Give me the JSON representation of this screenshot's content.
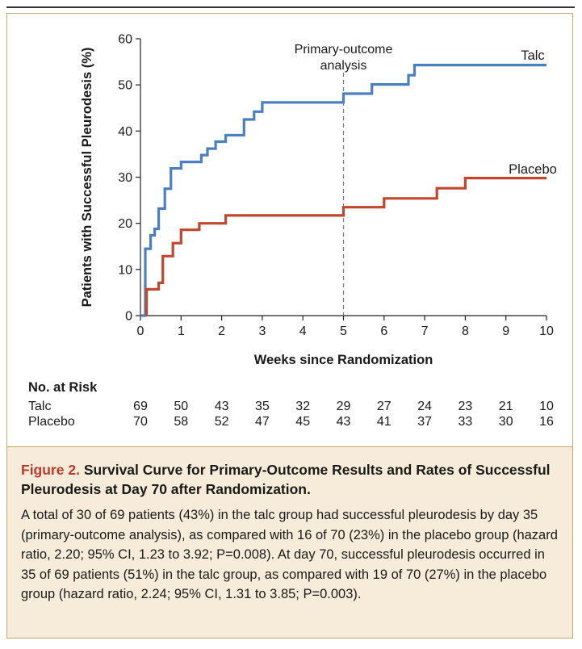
{
  "chart_data": {
    "type": "line",
    "title": "",
    "xlabel": "Weeks since Randomization",
    "ylabel": "Patients with Successful Pleurodesis (%)",
    "xlim": [
      0,
      10
    ],
    "ylim": [
      0,
      60
    ],
    "x_ticks": [
      "0",
      "1",
      "2",
      "3",
      "4",
      "5",
      "6",
      "7",
      "8",
      "9",
      "10"
    ],
    "y_ticks": [
      "0",
      "10",
      "20",
      "30",
      "40",
      "50",
      "60"
    ],
    "step": true,
    "series": [
      {
        "name": "Talc",
        "color": "#4a7fc1",
        "x": [
          0,
          0.12,
          0.12,
          0.25,
          0.25,
          0.35,
          0.35,
          0.45,
          0.45,
          0.6,
          0.6,
          0.75,
          0.75,
          1.0,
          1.0,
          1.5,
          1.5,
          1.65,
          1.65,
          1.85,
          1.85,
          2.1,
          2.1,
          2.55,
          2.55,
          2.8,
          2.8,
          3.0,
          3.0,
          5.0,
          5.0,
          5.7,
          5.7,
          6.6,
          6.6,
          6.75,
          6.75,
          8.55,
          8.55,
          10.0
        ],
        "y": [
          0,
          0,
          14.5,
          14.5,
          17.4,
          17.4,
          18.8,
          18.8,
          23.2,
          23.2,
          27.5,
          27.5,
          31.9,
          31.9,
          33.3,
          33.3,
          34.8,
          34.8,
          36.2,
          36.2,
          37.7,
          37.7,
          39.1,
          39.1,
          42.5,
          42.5,
          44.2,
          44.2,
          46.2,
          46.2,
          48.1,
          48.1,
          50.1,
          50.1,
          52.1,
          52.1,
          54.3,
          54.3,
          54.3,
          54.3
        ]
      },
      {
        "name": "Placebo",
        "color": "#c0462c",
        "x": [
          0.15,
          0.15,
          0.45,
          0.45,
          0.55,
          0.55,
          0.8,
          0.8,
          1.0,
          1.0,
          1.45,
          1.45,
          2.1,
          2.1,
          5.0,
          5.0,
          6.0,
          6.0,
          7.3,
          7.3,
          8.0,
          8.0,
          10.0
        ],
        "y": [
          0,
          5.7,
          5.7,
          7.1,
          7.1,
          12.9,
          12.9,
          15.7,
          15.7,
          18.6,
          18.6,
          20.0,
          20.0,
          21.7,
          21.7,
          23.5,
          23.5,
          25.4,
          25.4,
          27.6,
          27.6,
          29.8,
          29.8
        ]
      }
    ],
    "annotations": [
      {
        "text_lines": [
          "Primary-outcome",
          "analysis"
        ],
        "x": 5,
        "style": "dashed vertical line"
      }
    ],
    "series_labels": [
      "Talc",
      "Placebo"
    ]
  },
  "risk_table": {
    "header": "No. at Risk",
    "rows": [
      {
        "label": "Talc",
        "values": [
          "69",
          "50",
          "43",
          "35",
          "32",
          "29",
          "27",
          "24",
          "23",
          "21",
          "10"
        ]
      },
      {
        "label": "Placebo",
        "values": [
          "70",
          "58",
          "52",
          "47",
          "45",
          "43",
          "41",
          "37",
          "33",
          "30",
          "16"
        ]
      }
    ]
  },
  "caption": {
    "label": "Figure 2.",
    "title": "Survival Curve for Primary-Outcome Results and Rates of Successful Pleurodesis at Day 70 after Randomization.",
    "body": "A total of 30 of 69 patients (43%) in the talc group had successful pleurodesis by day 35 (primary-outcome analysis), as compared with 16 of 70 (23%) in the placebo group (hazard ratio, 2.20; 95% CI, 1.23 to 3.92; P=0.008). At day 70, successful pleurodesis occurred in 35 of 69 patients (51%) in the talc group, as compared with 19 of 70 (27%) in the placebo group (hazard ratio, 2.24; 95% CI, 1.31 to 3.85; P=0.003)."
  }
}
